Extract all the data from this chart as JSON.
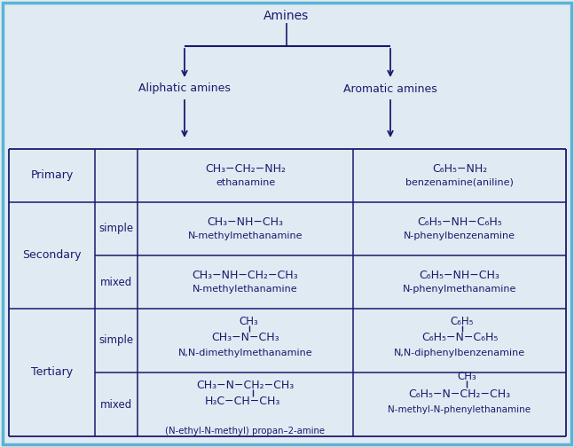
{
  "title": "Amines",
  "bg_color": "#e0eaf2",
  "border_color": "#5ab4d4",
  "text_color": "#1a1a6e",
  "line_color": "#1a1a6e",
  "aliphatic": "Aliphatic amines",
  "aromatic": "Aromatic amines",
  "fig_w": 6.47,
  "fig_h": 5.04,
  "dpi": 100
}
